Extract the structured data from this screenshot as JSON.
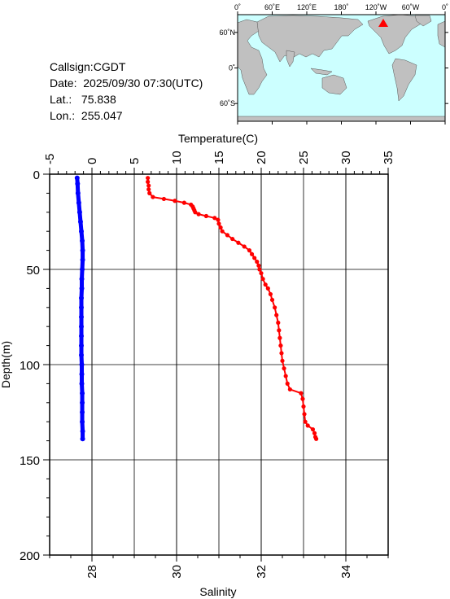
{
  "station": {
    "callsign_label": "Callsign:",
    "callsign": "CGDT",
    "date_label": "Date:",
    "date": "2025/09/30 07:30(UTC)",
    "lat_label": "Lat.:",
    "lat": "75.838",
    "lon_label": "Lon.:",
    "lon": "255.047"
  },
  "map": {
    "lon_ticks": [
      "0˚",
      "60˚E",
      "120˚E",
      "180˚",
      "120˚W",
      "60˚W",
      "0˚"
    ],
    "lat_ticks": [
      "60˚N",
      "0˚",
      "60˚S"
    ],
    "ocean_color": "#ccffff",
    "land_color": "#c0c0c0",
    "marker_color": "#ff0000"
  },
  "chart_data": {
    "type": "scatter",
    "ylabel": "Depth(m)",
    "y_ticks": [
      0,
      50,
      100,
      150,
      200
    ],
    "ylim": [
      0,
      200
    ],
    "y_reversed": true,
    "top_axis": {
      "label": "Temperature(C)",
      "ticks": [
        -5,
        0,
        5,
        10,
        15,
        20,
        25,
        30,
        35
      ],
      "range": [
        -5,
        35
      ]
    },
    "bottom_axis": {
      "label": "Salinity",
      "ticks": [
        28,
        30,
        32,
        34
      ],
      "range": [
        27,
        35
      ]
    },
    "grid": true,
    "series": [
      {
        "axis": "top",
        "color": "#ff0000",
        "depth": [
          2,
          4,
          6,
          8,
          10,
          12,
          13,
          14,
          15,
          16,
          17,
          18,
          19,
          20,
          21,
          22,
          23,
          24,
          26,
          28,
          30,
          32,
          34,
          36,
          38,
          40,
          42,
          44,
          46,
          48,
          50,
          52,
          55,
          58,
          60,
          63,
          66,
          70,
          74,
          78,
          82,
          86,
          90,
          94,
          98,
          102,
          106,
          110,
          113,
          115,
          118,
          122,
          126,
          130,
          132,
          134,
          136,
          138,
          139
        ],
        "values": [
          6.6,
          6.6,
          6.7,
          6.7,
          6.8,
          7.2,
          8.5,
          9.8,
          10.9,
          11.7,
          11.9,
          12,
          12.1,
          12.2,
          12.6,
          13.5,
          14.5,
          14.9,
          15,
          15.2,
          15.4,
          16,
          16.6,
          17.3,
          18,
          18.6,
          18.9,
          19.2,
          19.5,
          19.7,
          19.8,
          20,
          20.2,
          20.5,
          20.8,
          21.1,
          21.3,
          21.6,
          21.8,
          22,
          22.1,
          22.2,
          22.3,
          22.4,
          22.5,
          22.7,
          22.9,
          23.1,
          23.4,
          24.7,
          24.9,
          25,
          25.1,
          25.2,
          25.5,
          26.1,
          26.3,
          26.4,
          26.5
        ]
      },
      {
        "axis": "bottom",
        "color": "#0000ff",
        "depth": [
          2,
          5,
          10,
          15,
          20,
          25,
          30,
          35,
          40,
          45,
          50,
          55,
          60,
          65,
          70,
          75,
          80,
          85,
          90,
          95,
          100,
          105,
          110,
          115,
          120,
          125,
          130,
          135,
          139
        ],
        "values": [
          27.65,
          27.66,
          27.67,
          27.69,
          27.71,
          27.73,
          27.75,
          27.77,
          27.78,
          27.78,
          27.77,
          27.76,
          27.76,
          27.75,
          27.75,
          27.75,
          27.75,
          27.75,
          27.75,
          27.75,
          27.76,
          27.76,
          27.76,
          27.77,
          27.77,
          27.77,
          27.77,
          27.78,
          27.78
        ]
      }
    ]
  }
}
